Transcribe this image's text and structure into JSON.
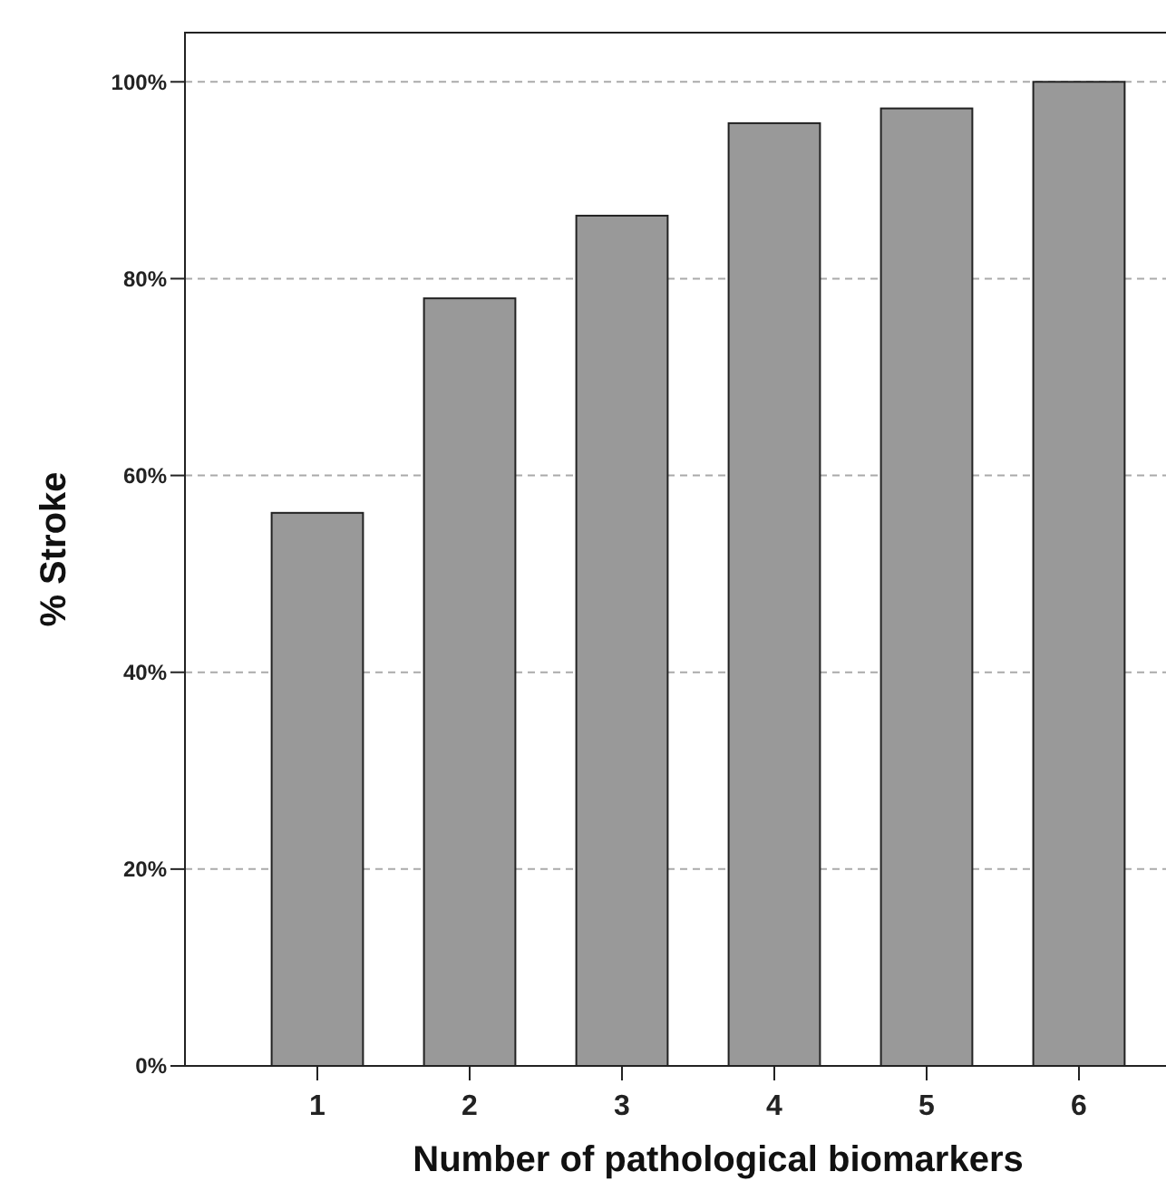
{
  "chart_data": {
    "type": "bar",
    "xlabel": "Number of pathological biomarkers",
    "ylabel": "% Stroke",
    "categories": [
      "1",
      "2",
      "3",
      "4",
      "5",
      "6"
    ],
    "values": [
      56.2,
      78.0,
      86.4,
      95.8,
      97.3,
      100
    ],
    "color": "#999999",
    "ylim": [
      0,
      105
    ],
    "yticks": [
      {
        "value": 0,
        "label": "0%"
      },
      {
        "value": 20,
        "label": "20%"
      },
      {
        "value": 40,
        "label": "40%"
      },
      {
        "value": 60,
        "label": "60%"
      },
      {
        "value": 80,
        "label": "80%"
      },
      {
        "value": 100,
        "label": "100%"
      }
    ],
    "grid": "y"
  }
}
